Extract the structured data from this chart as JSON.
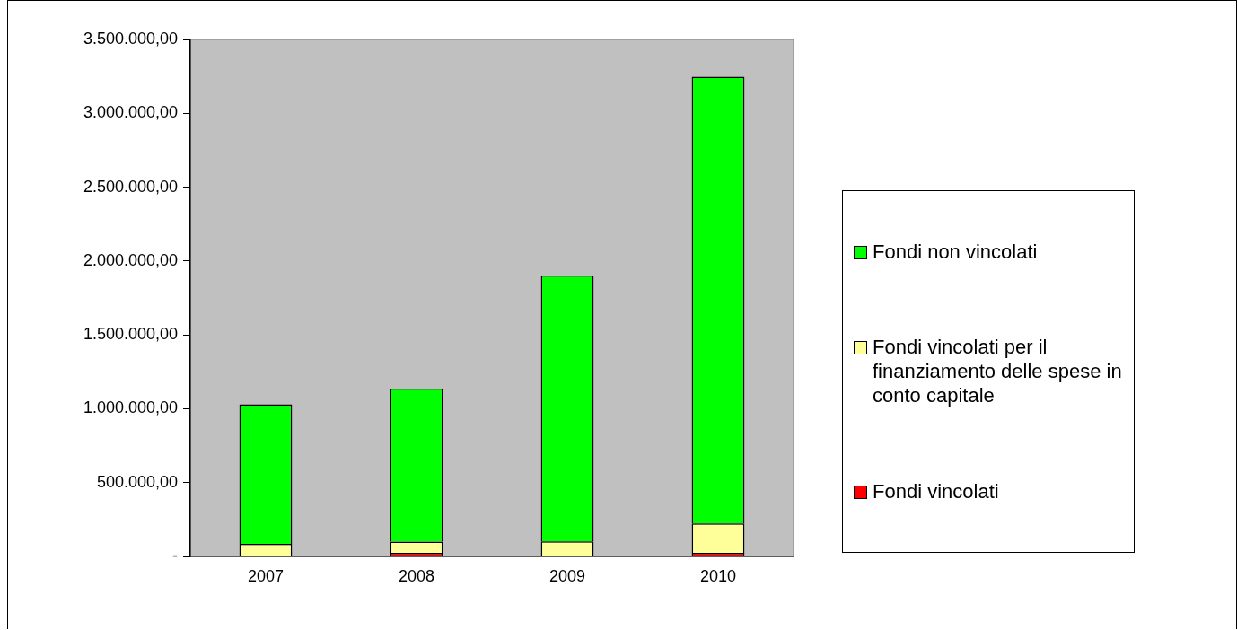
{
  "chart_data": {
    "type": "bar",
    "stacked": true,
    "categories": [
      "2007",
      "2008",
      "2009",
      "2010"
    ],
    "series": [
      {
        "name": "Fondi vincolati",
        "color": "#ff0000",
        "values": [
          0,
          25000,
          null,
          25000
        ]
      },
      {
        "name": "Fondi vincolati per il finanziamento delle spese in conto capitale",
        "color": "#ffff99",
        "values": [
          85000,
          76000,
          102000,
          199000
        ]
      },
      {
        "name": "Fondi non vincolati",
        "color": "#00ff00",
        "values": [
          945000,
          1035000,
          1800000,
          3024000
        ]
      }
    ],
    "ylim": [
      0,
      3500000
    ],
    "yticks": [
      {
        "value": 0,
        "label": "-"
      },
      {
        "value": 500000,
        "label": "500.000,00"
      },
      {
        "value": 1000000,
        "label": "1.000.000,00"
      },
      {
        "value": 1500000,
        "label": "1.500.000,00"
      },
      {
        "value": 2000000,
        "label": "2.000.000,00"
      },
      {
        "value": 2500000,
        "label": "2.500.000,00"
      },
      {
        "value": 3000000,
        "label": "3.000.000,00"
      },
      {
        "value": 3500000,
        "label": "3.500.000,00"
      }
    ],
    "grid": false,
    "legend": "right"
  }
}
